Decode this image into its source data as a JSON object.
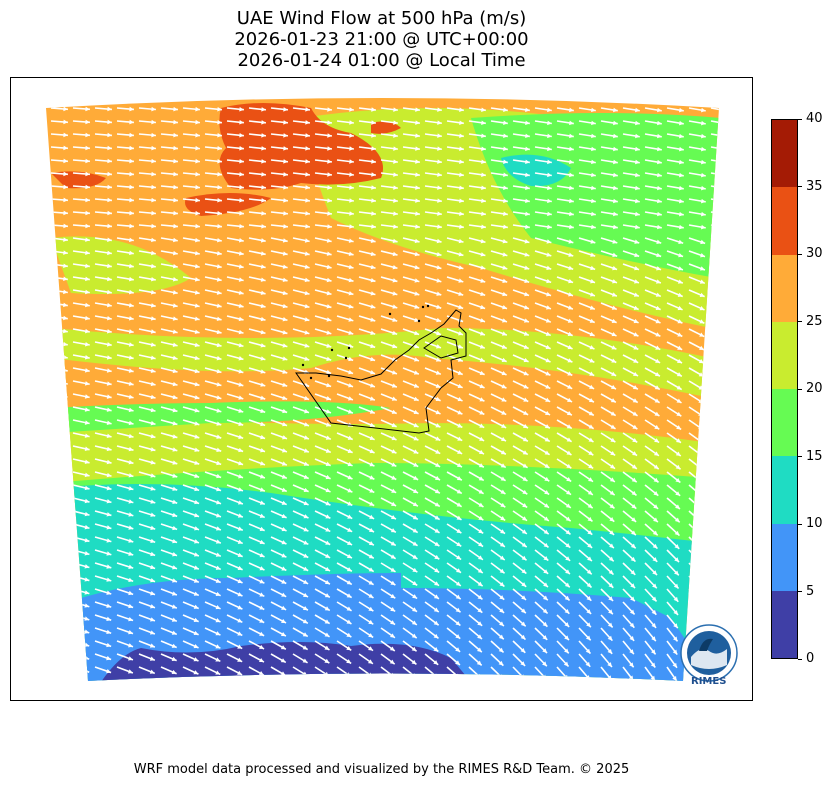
{
  "title": {
    "line1": "UAE Wind Flow at 500 hPa (m/s)",
    "line2": "2026-01-23 21:00 @ UTC+00:00",
    "line3": "2026-01-24 01:00 @ Local Time"
  },
  "colorbar": {
    "ticks": [
      "0",
      "5",
      "10",
      "15",
      "20",
      "25",
      "30",
      "35",
      "40"
    ],
    "levels": [
      {
        "range": "0-5",
        "color": "#3f3fa6"
      },
      {
        "range": "5-10",
        "color": "#4295f8"
      },
      {
        "range": "10-15",
        "color": "#1fdcc3"
      },
      {
        "range": "15-20",
        "color": "#66fb53"
      },
      {
        "range": "20-25",
        "color": "#c9ec2f"
      },
      {
        "range": "25-30",
        "color": "#ffab38"
      },
      {
        "range": "30-35",
        "color": "#ea5114"
      },
      {
        "range": "35-40",
        "color": "#a41b05"
      }
    ]
  },
  "wind_field": {
    "variable": "wind speed",
    "units": "m/s",
    "level": "500 hPa",
    "arrow_color": "#ffffff",
    "prevailing_direction": "west to east, veering southeast in the south"
  },
  "logo": {
    "text": "RIMES",
    "ring_text": "Regional Integrated Multi-Hazard Early Warning System"
  },
  "footer": "WRF model data processed and visualized by the RIMES R&D Team. © 2025"
}
